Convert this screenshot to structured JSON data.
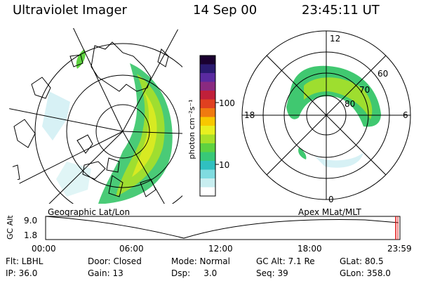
{
  "header": {
    "instrument": "Ultraviolet Imager",
    "date": "14 Sep 00",
    "time": "23:45:11 UT"
  },
  "colorbar": {
    "axis_label": "photon cm⁻²s⁻¹",
    "ticks": [
      "100",
      "10"
    ],
    "colors": [
      "#1a0030",
      "#2a1a70",
      "#5a2aa0",
      "#8a2a80",
      "#c0203a",
      "#e04020",
      "#f07a10",
      "#f8c800",
      "#e8f020",
      "#a8e028",
      "#5ed240",
      "#38c878",
      "#30c0c0",
      "#80dce0",
      "#c8eef0",
      "#ffffff"
    ]
  },
  "polar_plot": {
    "mlt_labels": {
      "top": "12",
      "left": "18",
      "right": "6",
      "bottom": "0"
    },
    "lat_labels": [
      "60",
      "70",
      "80"
    ]
  },
  "timeline": {
    "left_label": "Geographic Lat/Lon",
    "right_label": "Apex MLat/MLT",
    "y_axis_title": "GC Alt",
    "y_ticks": [
      "9.0",
      "1.8"
    ],
    "x_ticks": [
      "00:00",
      "06:00",
      "12:00",
      "18:00",
      "23:59"
    ],
    "marker_color": "#e01010"
  },
  "footer": {
    "row1": [
      "Flt: LBHL",
      "Door: Closed",
      "Mode: Normal",
      "GC Alt: 7.1 Re",
      "GLat: 80.5"
    ],
    "row2": [
      "IP: 36.0",
      "Gain: 13",
      "Dsp:     3.0",
      "Seq: 39",
      "GLon: 358.0"
    ]
  }
}
